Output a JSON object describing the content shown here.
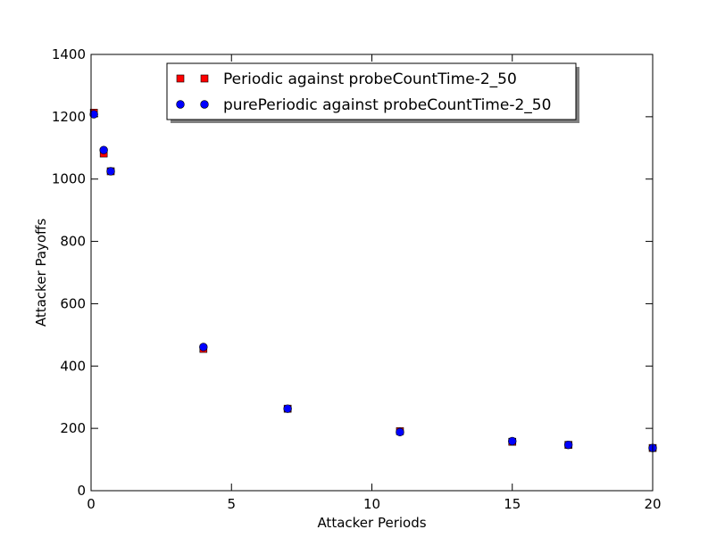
{
  "chart_data": {
    "type": "scatter",
    "title": "",
    "xlabel": "Attacker Periods",
    "ylabel": "Attacker Payoffs",
    "xlim": [
      0,
      20
    ],
    "ylim": [
      0,
      1400
    ],
    "xticks": [
      0,
      5,
      10,
      15,
      20
    ],
    "yticks": [
      0,
      200,
      400,
      600,
      800,
      1000,
      1200,
      1400
    ],
    "grid": false,
    "legend_position": "top-center",
    "series": [
      {
        "name": "Periodic against probeCountTime-2_50",
        "marker": "square",
        "color": "#ff0000",
        "x": [
          0.1,
          0.45,
          0.7,
          4,
          7,
          11,
          15,
          17,
          20
        ],
        "y": [
          1213,
          1082,
          1025,
          455,
          263,
          191,
          157,
          147,
          137
        ]
      },
      {
        "name": "purePeriodic against probeCountTime-2_50",
        "marker": "circle",
        "color": "#0000ff",
        "x": [
          0.1,
          0.45,
          0.7,
          4,
          7,
          11,
          15,
          17,
          20
        ],
        "y": [
          1208,
          1093,
          1025,
          461,
          263,
          188,
          159,
          147,
          137
        ]
      }
    ]
  }
}
